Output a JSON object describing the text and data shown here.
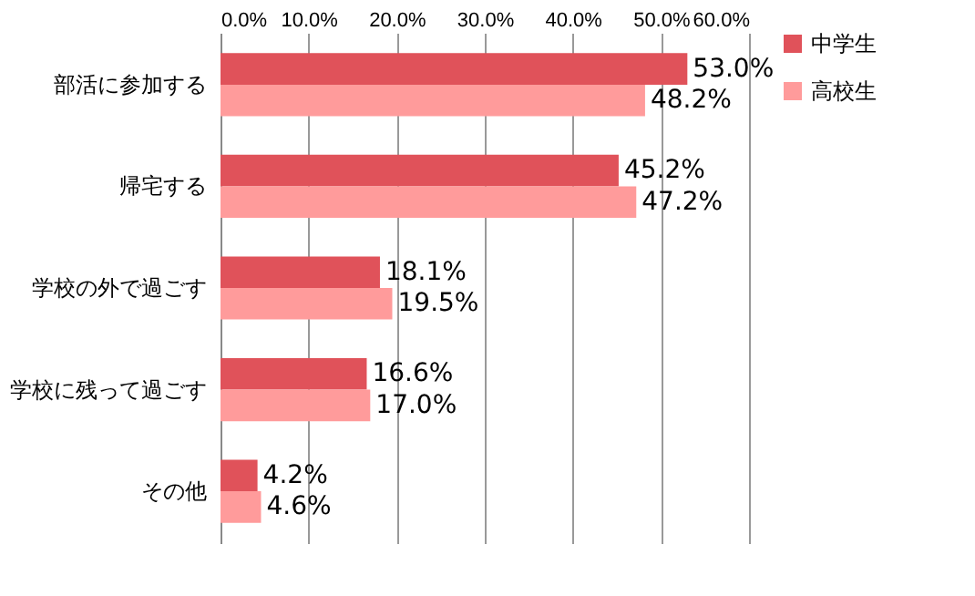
{
  "chart_data": {
    "type": "bar",
    "orientation": "horizontal",
    "categories": [
      "部活に参加する",
      "帰宅する",
      "学校の外で過ごす",
      "学校に残って過ごす",
      "その他"
    ],
    "series": [
      {
        "name": "中学生",
        "color": "#e0525a",
        "values": [
          53.0,
          45.2,
          18.1,
          16.6,
          4.2
        ],
        "value_labels": [
          "53.0%",
          "45.2%",
          "18.1%",
          "16.6%",
          "4.2%"
        ]
      },
      {
        "name": "高校生",
        "color": "#ff9b9b",
        "values": [
          48.2,
          47.2,
          19.5,
          17.0,
          4.6
        ],
        "value_labels": [
          "48.2%",
          "47.2%",
          "19.5%",
          "17.0%",
          "4.6%"
        ]
      }
    ],
    "xlim": [
      0,
      60
    ],
    "xticks": [
      {
        "value": 0,
        "label": "0.0%"
      },
      {
        "value": 10,
        "label": "10.0%"
      },
      {
        "value": 20,
        "label": "20.0%"
      },
      {
        "value": 30,
        "label": "30.0%"
      },
      {
        "value": 40,
        "label": "40.0%"
      },
      {
        "value": 50,
        "label": "50.0%"
      },
      {
        "value": 60,
        "label": "60.0%"
      }
    ],
    "grid": "x",
    "legend": "right"
  }
}
